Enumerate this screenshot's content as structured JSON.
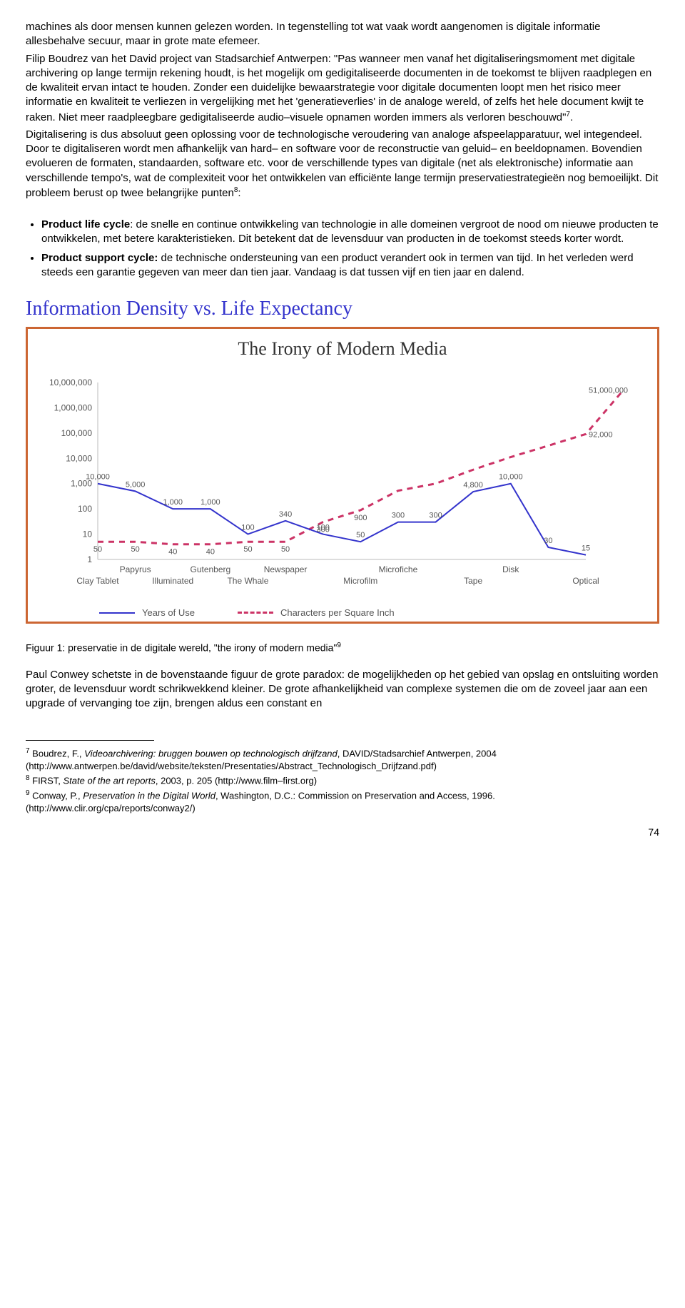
{
  "para1": "machines als door mensen kunnen gelezen worden. In tegenstelling tot wat vaak wordt aangenomen is digitale informatie allesbehalve secuur, maar in grote mate efemeer.",
  "para2a": "Filip Boudrez van het David project van Stadsarchief Antwerpen: \"Pas wanneer men vanaf het digitaliseringsmoment met digitale archivering op lange termijn rekening houdt, is het mogelijk om gedigitaliseerde documenten in de toekomst te blijven raadplegen en de kwaliteit ervan intact te houden. Zonder een duidelijke bewaarstrategie voor digitale documenten loopt men het risico meer informatie en kwaliteit te verliezen in vergelijking met het 'generatieverlies' in de analoge wereld, of zelfs het hele document kwijt te raken. Niet meer raadpleegbare gedigitaliseerde audio–visuele opnamen worden immers als verloren beschouwd\"",
  "sup7": "7",
  "para2b": ".",
  "para3": "Digitalisering is dus absoluut geen oplossing voor de technologische veroudering van analoge afspeelapparatuur, wel integendeel. Door te digitaliseren wordt men afhankelijk van hard– en software voor de reconstructie van geluid– en beeldopnamen. Bovendien evolueren de formaten, standaarden, software etc. voor de verschillende types van digitale (net als elektronische) informatie aan verschillende tempo's, wat de complexiteit voor het ontwikkelen van efficiënte lange termijn preservatiestrategieën nog bemoeilijkt. Dit probleem berust op twee belangrijke punten",
  "sup8": "8",
  "para3b": ":",
  "li1_bold": "Product life cycle",
  "li1_rest": ": de snelle en continue ontwikkeling van technologie in alle domeinen vergroot de nood om nieuwe producten te ontwikkelen, met betere karakteristieken. Dit betekent dat de levensduur van producten in de toekomst steeds korter wordt.",
  "li2_bold": "Product support cycle:",
  "li2_rest": " de technische ondersteuning van een product verandert ook in termen van tijd. In het verleden werd steeds een garantie gegeven van meer dan tien jaar. Vandaag is dat tussen vijf en tien jaar en dalend.",
  "fig_title": "Information Density vs. Life Expectancy",
  "chart": {
    "type": "line",
    "title": "The Irony of Modern Media",
    "y_labels": [
      "10,000,000",
      "1,000,000",
      "100,000",
      "10,000",
      "1,000",
      "100",
      "10",
      "1"
    ],
    "x_top": [
      "Papyrus",
      "Gutenberg",
      "Newspaper",
      "Microfiche",
      "Disk"
    ],
    "x_bottom": [
      "Clay Tablet",
      "Illuminated",
      "The Whale",
      "Microfilm",
      "Tape",
      "Optical"
    ],
    "years_values": [
      10000,
      5000,
      1000,
      1000,
      100,
      340,
      100,
      50,
      300,
      300,
      4800,
      10000,
      30,
      15,
      92000,
      51000000
    ],
    "years_pointlabels": [
      "10,000",
      "5,000",
      "1,000",
      "1,000",
      "100",
      "340",
      "100",
      "50",
      "300",
      "300",
      "4,800",
      "10,000",
      "30",
      "15"
    ],
    "density_pointlabels": [
      "50",
      "50",
      "40",
      "40",
      "50",
      "50",
      "300",
      "900"
    ],
    "endlabels": [
      "92,000",
      "51,000,000"
    ],
    "series": {
      "years_of_use": {
        "color": "#3333cc",
        "style": "solid",
        "width": 2,
        "points": [
          [
            0,
            3.0
          ],
          [
            1,
            2.7
          ],
          [
            2,
            2.0
          ],
          [
            3,
            2.0
          ],
          [
            4,
            1.0
          ],
          [
            5,
            1.53
          ],
          [
            6,
            1.0
          ],
          [
            7,
            0.7
          ],
          [
            8,
            1.48
          ],
          [
            9,
            1.48
          ],
          [
            10,
            2.68
          ],
          [
            11,
            3.0
          ],
          [
            12,
            0.48
          ],
          [
            13,
            0.18
          ]
        ]
      },
      "characters_per_sq_inch": {
        "color": "#cc3366",
        "style": "dashed",
        "width": 3,
        "points": [
          [
            0,
            0.7
          ],
          [
            1,
            0.7
          ],
          [
            2,
            0.6
          ],
          [
            3,
            0.6
          ],
          [
            4,
            0.7
          ],
          [
            5,
            0.7
          ],
          [
            6,
            1.48
          ],
          [
            7,
            1.95
          ],
          [
            8,
            2.72
          ],
          [
            9,
            3.0
          ],
          [
            10,
            3.55
          ],
          [
            11,
            4.05
          ],
          [
            12,
            4.5
          ],
          [
            13,
            4.96
          ],
          [
            14,
            6.7
          ]
        ]
      }
    },
    "legend": [
      {
        "label": "Years of Use",
        "style": "solid",
        "color": "#3333cc"
      },
      {
        "label": "Characters per Square Inch",
        "style": "dashed",
        "color": "#cc3366"
      }
    ],
    "background_color": "#ffffff",
    "grid_color": "#bbbbbb",
    "ylim": [
      0,
      7
    ],
    "label_color": "#555555",
    "axis_fontsize": 12
  },
  "caption_a": "Figuur 1: preservatie in de digitale wereld, \"the irony of modern media\"",
  "sup9": "9",
  "para4": "Paul Conwey schetste in de bovenstaande figuur de grote paradox: de mogelijkheden op het gebied van opslag en ontsluiting worden groter, de levensduur wordt schrikwekkend kleiner. De grote afhankelijkheid van complexe systemen die om de zoveel jaar aan een upgrade of vervanging toe zijn, brengen aldus een constant en",
  "fn7_pre": " Boudrez, F., ",
  "fn7_it": "Videoarchivering: bruggen bouwen op technologisch drijfzand",
  "fn7_post": ", DAVID/Stadsarchief Antwerpen, 2004 (http://www.antwerpen.be/david/website/teksten/Presentaties/Abstract_Technologisch_Drijfzand.pdf)",
  "fn8_pre": " FIRST, ",
  "fn8_it": "State of the art reports",
  "fn8_post": ", 2003, p. 205 (http://www.film–first.org)",
  "fn9_pre": " Conway, P., ",
  "fn9_it": "Preservation in the Digital World",
  "fn9_post": ", Washington, D.C.: Commission on Preservation and Access, 1996. (http://www.clir.org/cpa/reports/conway2/)",
  "page_num": "74"
}
